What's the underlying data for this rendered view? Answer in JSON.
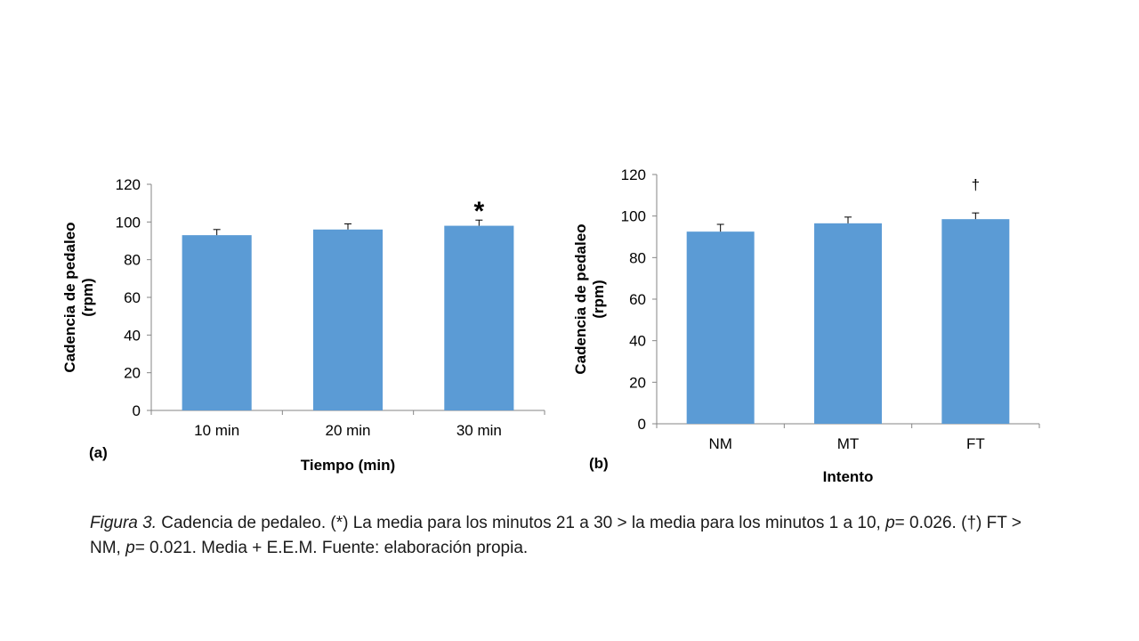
{
  "chart_data": [
    {
      "type": "bar",
      "panel_label": "(a)",
      "categories": [
        "10 min",
        "20 min",
        "30 min"
      ],
      "values": [
        93,
        96,
        98
      ],
      "errors": [
        3,
        3,
        3
      ],
      "annotations": [
        "",
        "",
        "*"
      ],
      "xlabel": "Tiempo (min)",
      "ylabel_lines": [
        "Cadencia de pedaleo",
        "(rpm)"
      ],
      "yticks": [
        "0",
        "20",
        "40",
        "60",
        "80",
        "100",
        "120"
      ],
      "ylim": [
        0,
        120
      ],
      "grid": false,
      "bar_color": "#5b9bd5"
    },
    {
      "type": "bar",
      "panel_label": "(b)",
      "categories": [
        "NM",
        "MT",
        "FT"
      ],
      "values": [
        92.5,
        96.5,
        98.5
      ],
      "errors": [
        3.5,
        3,
        3
      ],
      "annotations": [
        "",
        "",
        "†"
      ],
      "xlabel": "Intento",
      "ylabel_lines": [
        "Cadencia de pedaleo",
        "(rpm)"
      ],
      "yticks": [
        "0",
        "20",
        "40",
        "60",
        "80",
        "100",
        "120"
      ],
      "ylim": [
        0,
        120
      ],
      "grid": false,
      "bar_color": "#5b9bd5"
    }
  ],
  "caption": {
    "figure_label": "Figura 3.",
    "text_1": " Cadencia de pedaleo. (*) La media para los minutos 21 a 30 > la media para los minutos 1 a 10, ",
    "p1": "p",
    "text_2": "= 0.026. (†) FT > NM, ",
    "p2": "p",
    "text_3": "= 0.021. Media + E.E.M. Fuente: elaboración propia."
  }
}
